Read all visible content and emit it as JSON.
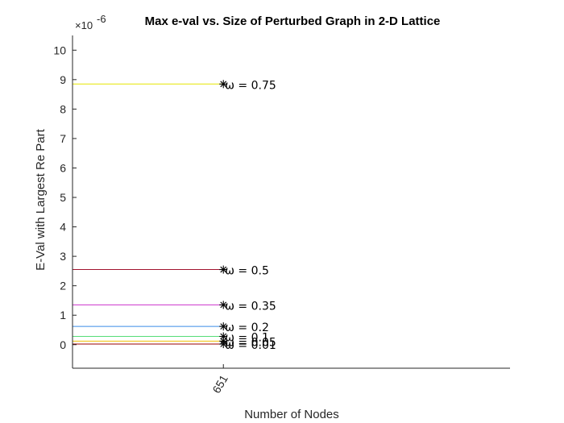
{
  "chart_data": {
    "type": "line",
    "title": "Max e-val vs. Size of Perturbed Graph in 2-D Lattice",
    "xlabel": "Number of Nodes",
    "ylabel": "E-Val with Largest Re Part",
    "y_exponent": {
      "base": "×10",
      "power": "-6"
    },
    "x_ticks": [
      "651"
    ],
    "y_ticks": [
      "0",
      "1",
      "2",
      "3",
      "4",
      "5",
      "6",
      "7",
      "8",
      "9",
      "10"
    ],
    "xlim": [
      650.5,
      651.95
    ],
    "ylim": [
      -0.8,
      10.5
    ],
    "grid": false,
    "legend": "none",
    "marker": "asterisk",
    "x": [
      651
    ],
    "series": [
      {
        "label": "ω = 0.75",
        "value": 8.85,
        "color": "#e6e600"
      },
      {
        "label": "ω = 0.5",
        "value": 2.55,
        "color": "#a2142f"
      },
      {
        "label": "ω = 0.35",
        "value": 1.35,
        "color": "#cc33cc"
      },
      {
        "label": "ω = 0.2",
        "value": 0.62,
        "color": "#3a8ee6"
      },
      {
        "label": "ω = 0.1",
        "value": 0.28,
        "color": "#55dd77"
      },
      {
        "label": "ω = 0.05",
        "value": 0.12,
        "color": "#f0c000"
      },
      {
        "label": "ω = 0.01",
        "value": 0.02,
        "color": "#990000"
      }
    ]
  }
}
